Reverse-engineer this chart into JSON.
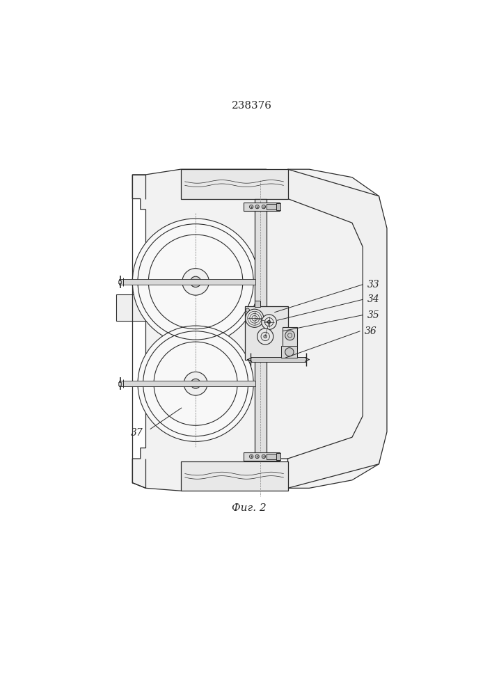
{
  "title": "238376",
  "caption": "Фuг. 2",
  "bg_color": "#ffffff",
  "line_color": "#2a2a2a",
  "lw": 0.8
}
